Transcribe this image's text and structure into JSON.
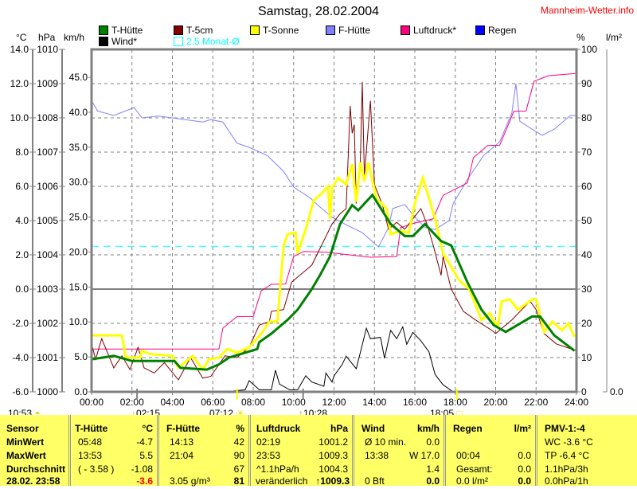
{
  "header": {
    "title": "Samstag, 28.02.2004",
    "brand": "Mannheim-Wetter.info"
  },
  "axis_headers": {
    "celsius": "°C",
    "hpa": "hPa",
    "kmh": "km/h",
    "percent": "%",
    "rain": "l/m²"
  },
  "legend": [
    {
      "label": "T-Hütte",
      "color": "#008000"
    },
    {
      "label": "T-5cm",
      "color": "#800000"
    },
    {
      "label": "T-Sonne",
      "color": "#ffff00"
    },
    {
      "label": "F-Hütte",
      "color": "#8080ff"
    },
    {
      "label": "Luftdruck*",
      "color": "#ff0080"
    },
    {
      "label": "Regen",
      "color": "#0000ff"
    },
    {
      "label": "Wind*",
      "color": "#000000"
    },
    {
      "label": "2.5 Monat-Ø",
      "color": "#00ffff"
    }
  ],
  "markers": [
    {
      "time": "10:53",
      "icon": "moon-icon"
    },
    {
      "time": "02:15",
      "icon": "moonset-arrow-icon"
    },
    {
      "time": "07:12",
      "icon": "sunrise-icon"
    },
    {
      "time": "10:28",
      "icon": "moonrise-arrow-icon"
    },
    {
      "time": "18:05",
      "icon": "sunset-icon"
    }
  ],
  "chart_data": {
    "type": "line",
    "title": "Samstag, 28.02.2004",
    "x_ticks": [
      "00:00",
      "02:00",
      "04:00",
      "06:00",
      "08:00",
      "10:00",
      "12:00",
      "14:00",
      "16:00",
      "18:00",
      "20:00",
      "22:00",
      "24:00"
    ],
    "xlim": [
      0,
      24
    ],
    "celsius_ticks": [
      "14.0",
      "12.0",
      "10.0",
      "8.0",
      "6.0",
      "4.0",
      "2.0",
      "0.0",
      "-2.0",
      "-4.0",
      "-6.0"
    ],
    "hpa_ticks": [
      "1010",
      "1009",
      "1008",
      "1007",
      "1006",
      "1005",
      "1004",
      "1003",
      "1002",
      "1001",
      "1000"
    ],
    "kmh_ticks": [
      "45.0",
      "40.0",
      "35.0",
      "30.0",
      "25.0",
      "20.0",
      "15.0",
      "10.0",
      "5.0",
      "0.0"
    ],
    "percent_ticks": [
      "100",
      "90",
      "80",
      "70",
      "60",
      "50",
      "40",
      "30",
      "20",
      "10",
      "0"
    ],
    "rain_ticks": [
      "0.0"
    ],
    "ylim_celsius": [
      -6,
      14
    ],
    "ylim_hpa": [
      1000,
      1010
    ],
    "ylim_percent": [
      0,
      100
    ],
    "ylim_kmh": [
      0,
      49
    ],
    "monthly_avg_celsius": 2.5,
    "series": [
      {
        "name": "F-Hütte",
        "axis": "percent",
        "color": "#8080ff",
        "width": 1,
        "x": [
          0,
          0.3,
          1.1,
          2.1,
          2.5,
          3.3,
          4.0,
          5.5,
          5.9,
          6.5,
          7.2,
          7.8,
          8.7,
          9.5,
          10.0,
          10.8,
          11.3,
          11.9,
          12.6,
          13.4,
          14.2,
          14.7,
          14.9,
          15.5,
          16.0,
          16.5,
          17.0,
          17.7,
          17.9,
          18.6,
          19.4,
          20.2,
          20.8,
          21.0,
          21.2,
          21.8,
          22.3,
          22.9,
          23.7,
          24
        ],
        "y": [
          85,
          82,
          80.7,
          83,
          80,
          80.5,
          80,
          78.8,
          79.5,
          78.8,
          72.6,
          71.4,
          69,
          64.4,
          59.8,
          56.7,
          54,
          51,
          48.8,
          46.5,
          42.3,
          48,
          53.5,
          54.7,
          51,
          48,
          47.4,
          50,
          55,
          62,
          69,
          73,
          81.4,
          90,
          79,
          76.7,
          74.9,
          76.7,
          80.7,
          80.7
        ]
      },
      {
        "name": "Luftdruck*",
        "axis": "hpa",
        "color": "#ff0080",
        "width": 1,
        "x": [
          0,
          6.3,
          6.5,
          7.2,
          8.0,
          8.4,
          8.9,
          9.6,
          10.0,
          10.5,
          11.6,
          13.8,
          15.1,
          15.3,
          16.0,
          16.9,
          17.4,
          18.6,
          18.9,
          19.6,
          20.2,
          20.9,
          21.5,
          21.9,
          22.6,
          24
        ],
        "y": [
          1001.25,
          1001.25,
          1001.86,
          1002.2,
          1002.2,
          1002.95,
          1003.14,
          1003.15,
          1003.95,
          1004.1,
          1004.08,
          1003.93,
          1003.95,
          1004.8,
          1004.93,
          1005.05,
          1005.74,
          1006.1,
          1006.84,
          1007.19,
          1007.2,
          1008.19,
          1008.2,
          1009.07,
          1009.23,
          1009.3
        ]
      },
      {
        "name": "Wind*",
        "axis": "kmh",
        "color": "#000000",
        "width": 1,
        "x": [
          0,
          6.6,
          7.6,
          7.8,
          8.3,
          8.9,
          9.1,
          9.3,
          9.8,
          10.2,
          10.6,
          10.9,
          11.5,
          11.6,
          11.9,
          12.0,
          12.4,
          12.6,
          13.1,
          13.3,
          13.6,
          13.8,
          14.3,
          14.5,
          14.8,
          15.1,
          15.4,
          15.6,
          15.9,
          16.3,
          16.7,
          17.0,
          17.4,
          17.9,
          24
        ],
        "y": [
          0,
          0,
          0.3,
          1.6,
          0.3,
          0.3,
          3.1,
          1.1,
          0.3,
          0.3,
          2.3,
          1.4,
          0.8,
          2.7,
          1.4,
          2.3,
          3.9,
          5.1,
          3.3,
          5.6,
          9.1,
          7.6,
          7.8,
          4.8,
          8.8,
          7.6,
          9.3,
          6.8,
          8.5,
          7.3,
          5.7,
          2.5,
          1.0,
          0,
          0
        ]
      },
      {
        "name": "T-5cm",
        "axis": "celsius",
        "color": "#800000",
        "width": 1,
        "x": [
          0,
          0.2,
          0.5,
          1.1,
          1.5,
          1.9,
          2.3,
          2.6,
          3.1,
          3.6,
          4.3,
          4.9,
          5.5,
          5.9,
          6.6,
          7.2,
          7.8,
          8.3,
          8.8,
          8.9,
          9.5,
          9.9,
          10.9,
          11.9,
          12.3,
          12.6,
          12.8,
          12.9,
          13.0,
          13.1,
          13.3,
          13.4,
          13.5,
          13.8,
          14.0,
          14.4,
          14.7,
          15.1,
          15.5,
          16.3,
          16.6,
          16.9,
          17.3,
          17.4,
          17.8,
          18.4,
          19.0,
          19.8,
          20.0,
          20.8,
          21.7,
          22.0,
          22.4,
          23.0,
          24
        ],
        "y": [
          -3.2,
          -4.1,
          -2.9,
          -4.6,
          -3.9,
          -4.7,
          -3.4,
          -4.6,
          -4.9,
          -4.3,
          -5.3,
          -4.0,
          -5.2,
          -5.1,
          -3.9,
          -4.0,
          -3.4,
          -2.1,
          -1.9,
          -1.3,
          -1.2,
          0.4,
          1.4,
          3.8,
          4.4,
          4.7,
          10.7,
          9.1,
          9.6,
          5.0,
          7.3,
          12.1,
          6.6,
          11.0,
          6.1,
          4.9,
          3.5,
          3.9,
          3.5,
          4.7,
          3.8,
          2.6,
          0.8,
          1.9,
          0,
          -1.3,
          -1.8,
          -2.4,
          -2.6,
          -1.8,
          -0.7,
          -1.2,
          -2.6,
          -3.2,
          -3.6
        ]
      },
      {
        "name": "T-Sonne",
        "axis": "celsius",
        "color": "#ffff00",
        "width": 3,
        "x": [
          0,
          1.5,
          1.7,
          2.4,
          2.5,
          2.9,
          4.0,
          4.3,
          5.0,
          5.5,
          5.8,
          6.3,
          6.7,
          7.2,
          7.8,
          8.4,
          8.8,
          9.2,
          9.5,
          9.7,
          10.1,
          10.2,
          10.6,
          11.0,
          11.4,
          11.7,
          11.8,
          11.9,
          12.2,
          12.6,
          12.9,
          13.1,
          13.3,
          13.5,
          13.7,
          14.1,
          14.6,
          14.8,
          15.3,
          15.7,
          16.0,
          16.4,
          16.7,
          17.0,
          17.4,
          17.8,
          18.2,
          18.7,
          19.3,
          19.7,
          20.1,
          20.3,
          20.7,
          21.1,
          21.8,
          22.0,
          22.4,
          22.8,
          23.3,
          23.6,
          23.9
        ],
        "y": [
          -2.7,
          -2.7,
          -4.0,
          -4.0,
          -3.6,
          -3.8,
          -3.9,
          -4.6,
          -3.9,
          -4.7,
          -4.1,
          -4.0,
          -3.5,
          -3.7,
          -3.4,
          -2.6,
          -1.9,
          -1.9,
          2.5,
          3.2,
          3.3,
          2.1,
          3.5,
          5.2,
          5.6,
          6.0,
          4.1,
          5.9,
          6.5,
          6.1,
          7.3,
          5.1,
          7.4,
          6.3,
          7.4,
          5.3,
          4.7,
          3.2,
          3.4,
          3.3,
          5.0,
          6.5,
          5.3,
          4.1,
          2.1,
          1.3,
          0.5,
          0,
          -1.8,
          -1.4,
          -2.2,
          -0.7,
          -0.6,
          -1.2,
          -0.6,
          -0.6,
          -2.5,
          -1.9,
          -2.4,
          -2.0,
          -2.8
        ]
      },
      {
        "name": "T-Hütte",
        "axis": "celsius",
        "color": "#008000",
        "width": 3,
        "x": [
          0,
          1.1,
          2.0,
          4.1,
          4.4,
          5.7,
          6.3,
          6.8,
          8.2,
          8.3,
          8.9,
          9.7,
          10.2,
          10.9,
          11.3,
          11.8,
          12.3,
          12.9,
          13.2,
          13.9,
          14.8,
          15.5,
          15.9,
          16.5,
          17.3,
          17.8,
          18.6,
          19.3,
          19.9,
          20.5,
          21.8,
          22.2,
          22.9,
          23.9
        ],
        "y": [
          -4.1,
          -3.9,
          -4.2,
          -4.2,
          -4.6,
          -4.7,
          -4.4,
          -4.0,
          -3.5,
          -3.1,
          -2.6,
          -1.8,
          -1.2,
          0,
          0.8,
          1.9,
          3.8,
          4.9,
          4.6,
          5.5,
          3.8,
          3.1,
          3.1,
          3.8,
          2.8,
          2.55,
          0.4,
          -1.2,
          -2.1,
          -2.5,
          -1.6,
          -1.6,
          -2.7,
          -3.6
        ]
      }
    ]
  },
  "table": {
    "sensor": {
      "header": "Sensor",
      "rows": [
        "MinWert",
        "MaxWert",
        "Durchschnitt",
        "28.02. 23:58"
      ]
    },
    "t_huette": {
      "header": "T-Hütte",
      "unit": "°C",
      "left": [
        "05:48",
        "13:53",
        "( - 3.58 )",
        ""
      ],
      "right": [
        "-4.7",
        "5.5",
        "-1.08",
        "-3.6"
      ]
    },
    "f_huette": {
      "header": "F-Hütte",
      "unit": "%",
      "left": [
        "14:13",
        "21:04",
        "",
        "3.05 g/m³"
      ],
      "right": [
        "42",
        "90",
        "67",
        "81"
      ]
    },
    "luftdruck": {
      "header": "Luftdruck",
      "unit": "hPa",
      "left": [
        "02:19",
        "23:53",
        "^1.1hPa/h",
        "veränderlich"
      ],
      "right": [
        "1001.2",
        "1009.3",
        "1004.3",
        "1009.3"
      ]
    },
    "wind": {
      "header": "Wind",
      "unit": "km/h",
      "left": [
        "Ø 10 min.",
        "13:38",
        "",
        "0 Bft"
      ],
      "right": [
        "0.0",
        "W 17.0",
        "1.4",
        "0.0"
      ]
    },
    "regen": {
      "header": "Regen",
      "unit": "l/m²",
      "left": [
        "",
        "00:04",
        "Gesamt:",
        "0.0 l/m²"
      ],
      "right": [
        "",
        "0.0",
        "0.0",
        "0.0"
      ]
    },
    "pmv": {
      "header": "PMV-1:-4",
      "rows": [
        "WC -3.6 °C",
        "TP -6.4 °C",
        "1.1hPa/3h",
        "0.0hPa/1h"
      ]
    }
  }
}
